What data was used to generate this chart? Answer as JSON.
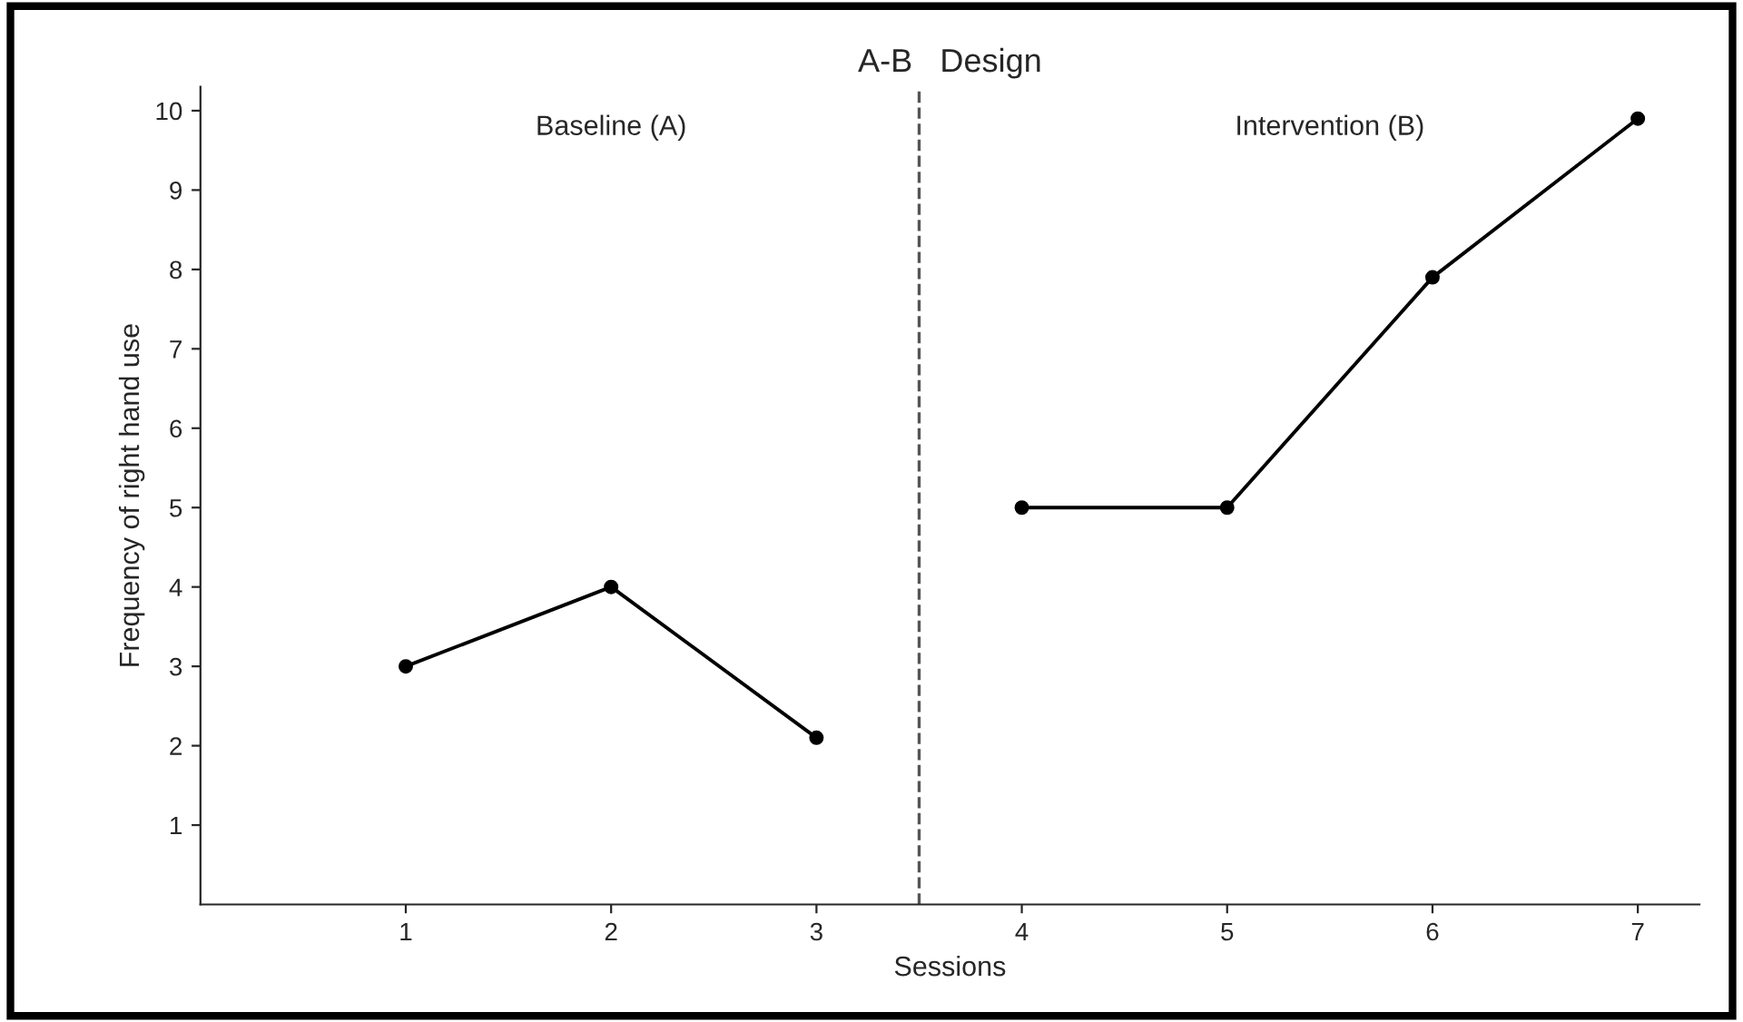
{
  "chart_data": {
    "type": "line",
    "title": "A-B   Design",
    "xlabel": "Sessions",
    "ylabel": "Frequency of right hand use",
    "series": [
      {
        "color": "#000000",
        "x": [
          1,
          2,
          3
        ],
        "values": [
          3,
          4,
          2.1
        ]
      },
      {
        "color": "#000000",
        "x": [
          4,
          5,
          6,
          7
        ],
        "values": [
          5,
          5,
          7.9,
          9.9
        ]
      }
    ],
    "xlim": [
      0,
      7.3
    ],
    "xticks": [
      1,
      2,
      3,
      4,
      5,
      6,
      7
    ],
    "ylim": [
      0,
      10.3
    ],
    "yticks": [
      1,
      2,
      3,
      4,
      5,
      6,
      7,
      8,
      9,
      10
    ],
    "ref_lines": [
      {
        "axis": "x",
        "value": 3.5,
        "color": "#555555",
        "line_style": "dashed"
      }
    ],
    "annotations": [
      "Baseline (A)",
      "Intervention (B)"
    ],
    "marker": "circle",
    "line_style": "solid",
    "grid": false
  }
}
